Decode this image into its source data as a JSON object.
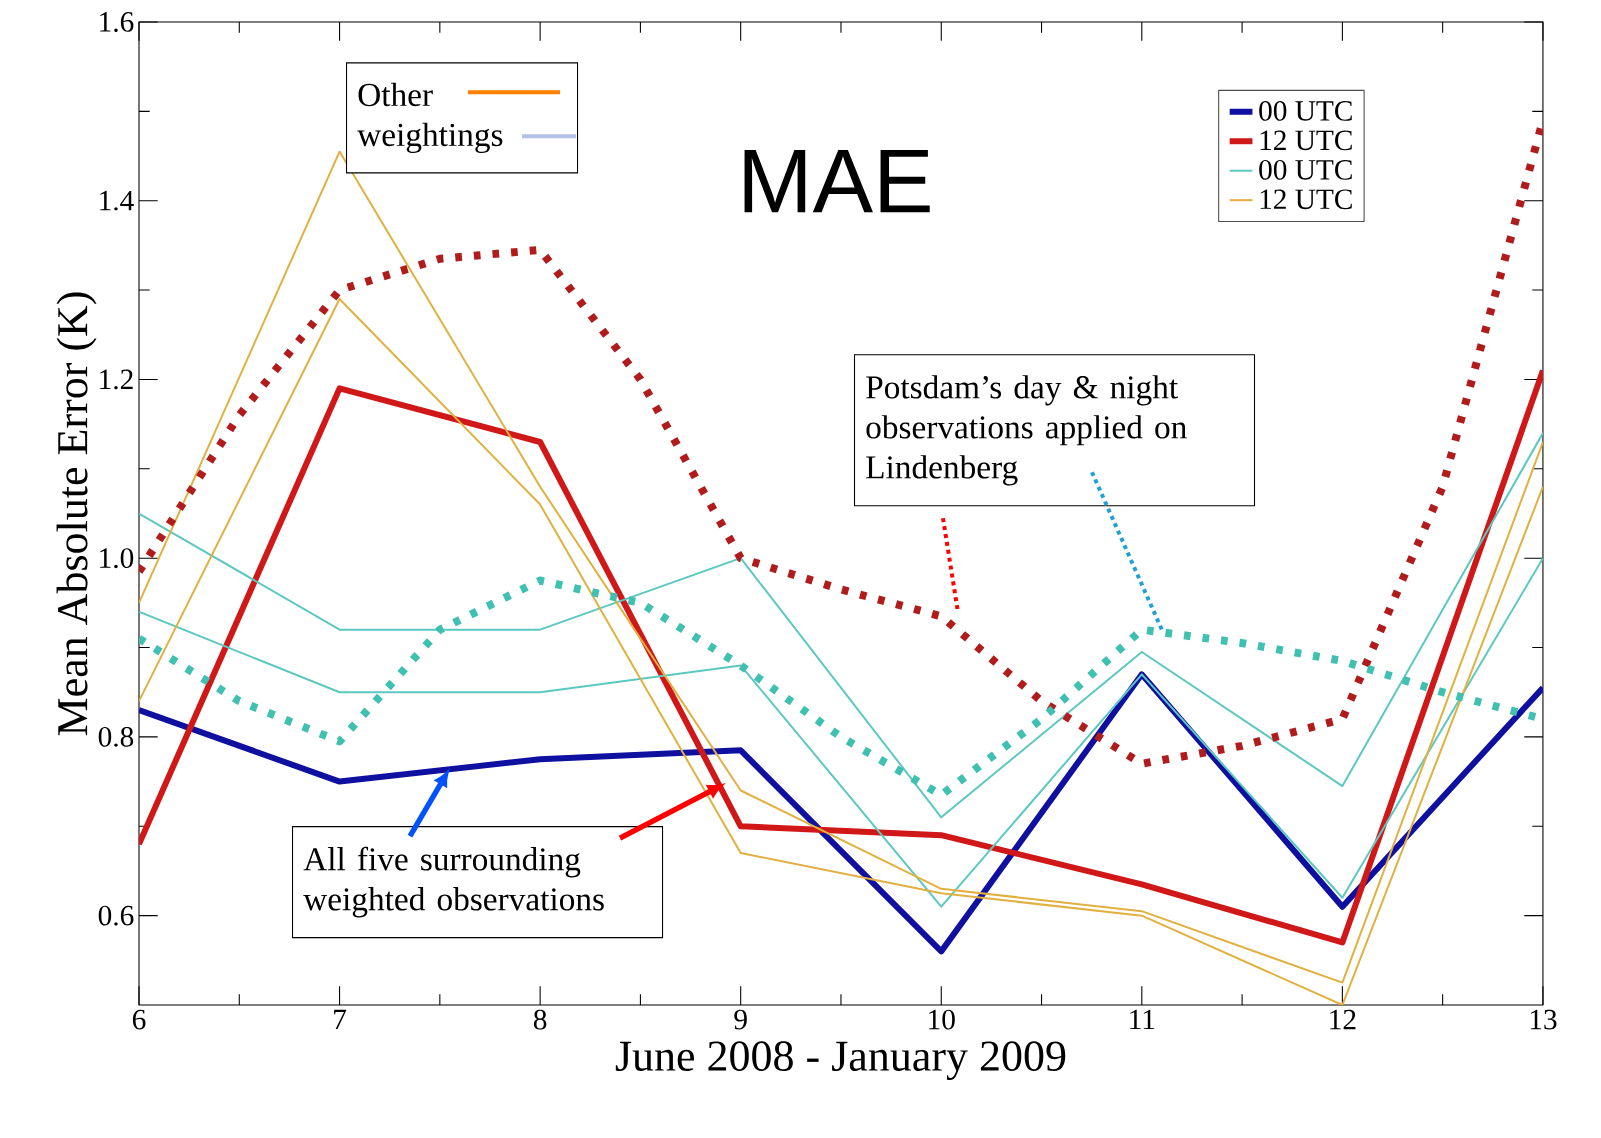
{
  "chart_data": {
    "type": "line",
    "title": "MAE",
    "xlabel": "June 2008 - January 2009",
    "ylabel": "Mean Absolute Error (K)",
    "xlim": [
      6,
      13
    ],
    "ylim": [
      0.5,
      1.6
    ],
    "xticks": [
      6,
      7,
      8,
      9,
      10,
      11,
      12,
      13
    ],
    "yticks": [
      0.6,
      0.8,
      {
        "value": 1.0,
        "label": "1.0"
      },
      1.2,
      1.4,
      1.6
    ],
    "grid": false,
    "legend": "top right",
    "marker": "none",
    "x": [
      6,
      7,
      8,
      9,
      10,
      11,
      12,
      13
    ],
    "series": [
      {
        "name": "00 UTC",
        "color": "#1010a0",
        "values": [
          0.83,
          0.75,
          0.775,
          0.785,
          0.56,
          0.87,
          0.61,
          0.855
        ]
      },
      {
        "name": "12 UTC",
        "color": "#d01818",
        "values": [
          0.68,
          1.19,
          1.13,
          0.7,
          0.69,
          0.635,
          0.57,
          1.21
        ]
      },
      {
        "name": "00 UTC",
        "color": "#5cc8c0",
        "values": [
          1.05,
          0.92,
          0.92,
          1.0,
          0.71,
          0.895,
          0.745,
          1.14
        ]
      },
      {
        "color": "#5cc8c0",
        "values": [
          0.94,
          0.85,
          0.85,
          0.88,
          0.61,
          0.87,
          0.62,
          1.0
        ]
      },
      {
        "name": "12 UTC",
        "color": "#e0b040",
        "values": [
          0.95,
          1.455,
          1.08,
          0.74,
          0.63,
          0.605,
          0.525,
          1.13
        ]
      },
      {
        "color": "#e0b040",
        "values": [
          0.84,
          1.29,
          1.06,
          0.67,
          0.625,
          0.6,
          0.5,
          1.08
        ]
      },
      {
        "color": "#b01c1c",
        "line_style": "dotted",
        "x": [
          6,
          6.5,
          7,
          7.5,
          8,
          8.5,
          9,
          9.5,
          10,
          10.5,
          11,
          11.5,
          12,
          12.5,
          13
        ],
        "values": [
          0.985,
          1.16,
          1.3,
          1.335,
          1.345,
          1.2,
          1.0,
          0.965,
          0.935,
          0.84,
          0.77,
          0.79,
          0.82,
          1.08,
          1.49
        ]
      },
      {
        "color": "#40c0b0",
        "line_style": "dotted",
        "x": [
          6,
          6.5,
          7,
          7.5,
          8,
          8.5,
          9,
          9.5,
          10,
          10.5,
          11,
          11.5,
          12,
          12.5,
          13
        ],
        "values": [
          0.91,
          0.84,
          0.795,
          0.92,
          0.975,
          0.95,
          0.88,
          0.8,
          0.735,
          0.82,
          0.92,
          0.905,
          0.885,
          0.85,
          0.82
        ]
      }
    ],
    "annotations": [
      "Other weightings",
      {
        "text": "Potsdam’s day & night observations applied on Lindenberg",
        "x": 11.1,
        "y": 0.92
      },
      {
        "text": "All five surrounding weighted observations",
        "x": 7.55,
        "y": 0.765
      }
    ]
  }
}
